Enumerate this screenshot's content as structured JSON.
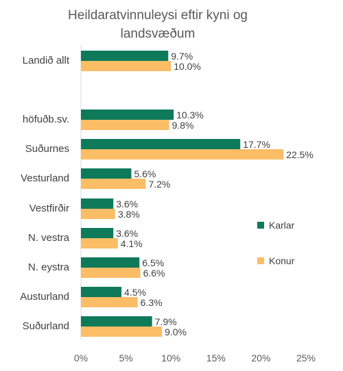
{
  "chart_data": {
    "type": "bar",
    "orientation": "horizontal",
    "title_lines": [
      "Heildaratvinnuleysi eftir kyni og",
      "landsvæðum"
    ],
    "categories": [
      "Landið allt",
      "höfuðb.sv.",
      "Suðurnes",
      "Vesturland",
      "Vestfirðir",
      "N. vestra",
      "N. eystra",
      "Austurland",
      "Suðurland"
    ],
    "series": [
      {
        "name": "Karlar",
        "color": "#0e7a5a",
        "values": [
          9.7,
          10.3,
          17.7,
          5.6,
          3.6,
          3.6,
          6.5,
          4.5,
          7.9
        ],
        "labels": [
          "9.7%",
          "10.3%",
          "17.7%",
          "5.6%",
          "3.6%",
          "3.6%",
          "6.5%",
          "4.5%",
          "7.9%"
        ]
      },
      {
        "name": "Konur",
        "color": "#fbbd66",
        "values": [
          10.0,
          9.8,
          22.5,
          7.2,
          3.8,
          4.1,
          6.6,
          6.3,
          9.0
        ],
        "labels": [
          "10.0%",
          "9.8%",
          "22.5%",
          "7.2%",
          "3.8%",
          "4.1%",
          "6.6%",
          "6.3%",
          "9.0%"
        ]
      }
    ],
    "xlim": [
      0,
      25
    ],
    "x_ticks": [
      0,
      5,
      10,
      15,
      20,
      25
    ],
    "x_tick_labels": [
      "0%",
      "5%",
      "10%",
      "15%",
      "20%",
      "25%"
    ],
    "grid": false,
    "legend_position": "right"
  }
}
